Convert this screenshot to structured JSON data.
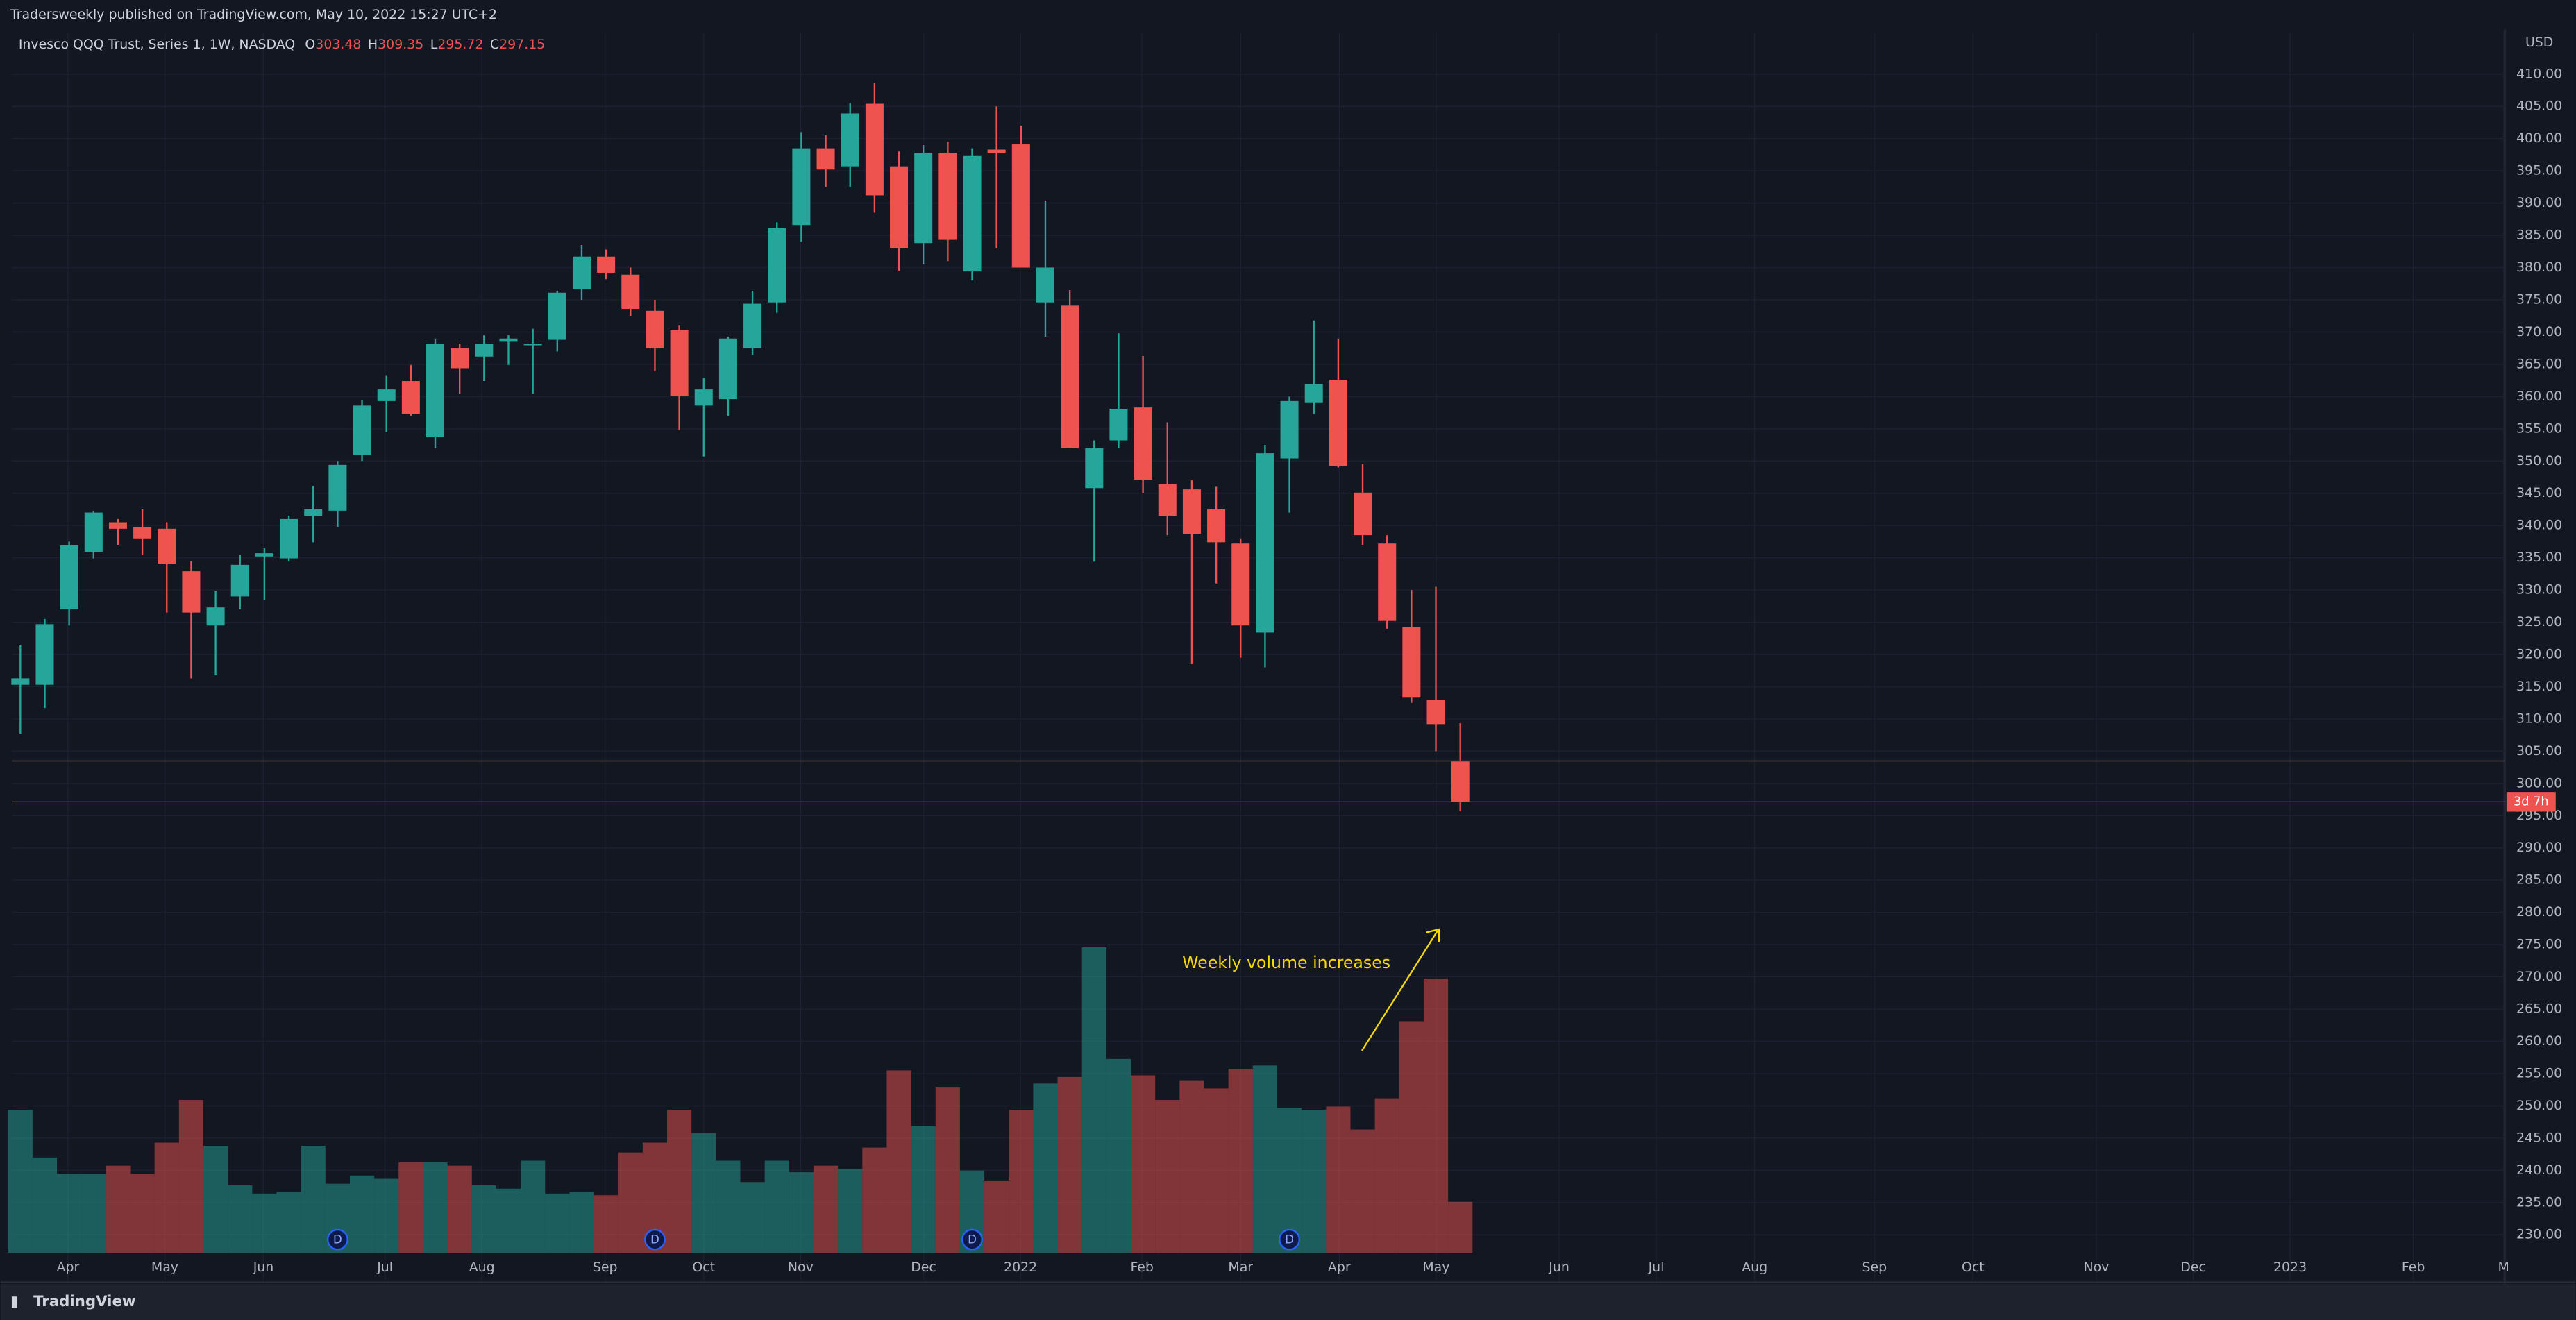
{
  "header": "Tradersweekly published on TradingView.com, May 10, 2022 15:27 UTC+2",
  "chart_data": {
    "type": "candlestick",
    "title": "Invesco QQQ Trust, Series 1, 1W, NASDAQ",
    "legend_ohlc": [
      {
        "label": "O",
        "value": 303.48
      },
      {
        "label": "H",
        "value": 309.35
      },
      {
        "label": "L",
        "value": 295.72
      },
      {
        "label": "C",
        "value": 297.15
      }
    ],
    "currency": "USD",
    "countdown": "3d 7h",
    "annotation": "Weekly volume increases",
    "up_color": "#26a69a",
    "down_color": "#ef5350",
    "open": [
      315.3,
      315.3,
      327,
      335.9,
      340.5,
      339.7,
      339.5,
      332.9,
      324.5,
      329,
      335.2,
      334.9,
      341.5,
      342.3,
      350.9,
      359.3,
      362.4,
      353.7,
      367.5,
      366.2,
      368.5,
      368,
      368.8,
      376.7,
      381.7,
      378.9,
      373.3,
      370.3,
      358.6,
      359.6,
      367.5,
      374.6,
      386.6,
      398.5,
      395.7,
      405.4,
      395.7,
      383.8,
      397.8,
      379.4,
      398.3,
      399.1,
      374.6,
      374.1,
      345.8,
      353.2,
      358.3,
      346.4,
      345.6,
      342.5,
      337.2,
      323.4,
      350.4,
      359.1,
      362.6,
      345.1,
      337.2,
      324.2,
      313,
      303.48
    ],
    "high": [
      321.4,
      325.5,
      337.5,
      342.3,
      341,
      342.5,
      340.5,
      334.5,
      329.8,
      335.4,
      336.5,
      341.5,
      346.1,
      350,
      359.5,
      363.2,
      364.9,
      369,
      368.2,
      369.5,
      369.5,
      370.5,
      376.4,
      383.5,
      382.8,
      380,
      375,
      371,
      362.9,
      369.3,
      376.4,
      387,
      401,
      400.5,
      405.5,
      408.6,
      398,
      399,
      399.5,
      398.5,
      405,
      402,
      390.4,
      376.5,
      353.2,
      369.8,
      366.3,
      356,
      347,
      346,
      338,
      352.5,
      360,
      371.8,
      369,
      349.5,
      338.5,
      330,
      330.5,
      309.35
    ],
    "low": [
      307.7,
      311.7,
      324.5,
      334.9,
      337,
      335.4,
      326.5,
      316.3,
      316.8,
      327,
      328.5,
      334.5,
      337.4,
      339.8,
      350,
      354.5,
      357,
      352,
      360.4,
      362.4,
      364.9,
      360.4,
      367,
      375,
      378.2,
      372.5,
      364,
      354.8,
      350.7,
      357,
      366.5,
      373,
      384,
      392.5,
      392.5,
      388.5,
      379.5,
      380.5,
      381,
      378,
      383,
      380,
      369.3,
      352,
      334.4,
      352,
      345,
      338.5,
      318.5,
      331,
      319.5,
      318,
      342,
      357.3,
      349,
      337,
      324,
      312.5,
      305,
      295.72
    ],
    "close": [
      316.3,
      324.7,
      336.9,
      342,
      339.5,
      338,
      334.1,
      326.5,
      327.3,
      333.9,
      335.7,
      341,
      342.5,
      349.4,
      358.6,
      361.1,
      357.3,
      368.2,
      364.4,
      368.2,
      369,
      368.2,
      376.1,
      381.7,
      379.2,
      373.6,
      367.5,
      360.1,
      361.1,
      369,
      374.4,
      386.1,
      398.5,
      395.2,
      403.9,
      391.2,
      383,
      397.8,
      384.3,
      397.3,
      397.8,
      380,
      380,
      352,
      352,
      358.1,
      347.1,
      341.5,
      338.7,
      337.4,
      324.5,
      351.2,
      359.3,
      361.9,
      349.2,
      338.5,
      325.2,
      313.3,
      309.2,
      297.15
    ],
    "volume": [
      87,
      58,
      48,
      48,
      53,
      48,
      67,
      93,
      65,
      41,
      36,
      37,
      65,
      42,
      47,
      45,
      55,
      55,
      53,
      41,
      39,
      56,
      36,
      37,
      35,
      61,
      67,
      87,
      73,
      56,
      43,
      56,
      49,
      53,
      51,
      64,
      111,
      77,
      101,
      50,
      44,
      87,
      103,
      107,
      186,
      118,
      108,
      93,
      105,
      100,
      112,
      114,
      88,
      87,
      89,
      75,
      94,
      141,
      167,
      31
    ],
    "dividends": [
      {
        "index": 13,
        "label": "D"
      },
      {
        "index": 26,
        "label": "D"
      },
      {
        "index": 39,
        "label": "D"
      },
      {
        "index": 52,
        "label": "D"
      }
    ],
    "xlim": [
      -0.34,
      101.8
    ],
    "xticks": [
      {
        "value": 1.95,
        "label": "Apr"
      },
      {
        "value": 5.92,
        "label": "May"
      },
      {
        "value": 9.96,
        "label": "Jun"
      },
      {
        "value": 14.94,
        "label": "Jul"
      },
      {
        "value": 18.91,
        "label": "Aug"
      },
      {
        "value": 23.96,
        "label": "Sep"
      },
      {
        "value": 28.0,
        "label": "Oct"
      },
      {
        "value": 31.97,
        "label": "Nov"
      },
      {
        "value": 37.01,
        "label": "Dec"
      },
      {
        "value": 40.98,
        "label": "2022"
      },
      {
        "value": 45.96,
        "label": "Feb"
      },
      {
        "value": 50.0,
        "label": "Mar"
      },
      {
        "value": 54.04,
        "label": "Apr"
      },
      {
        "value": 58.01,
        "label": "May"
      },
      {
        "value": 63.05,
        "label": "Jun"
      },
      {
        "value": 67.03,
        "label": "Jul"
      },
      {
        "value": 71.06,
        "label": "Aug"
      },
      {
        "value": 75.97,
        "label": "Sep"
      },
      {
        "value": 80.01,
        "label": "Oct"
      },
      {
        "value": 85.06,
        "label": "Nov"
      },
      {
        "value": 89.03,
        "label": "Dec"
      },
      {
        "value": 93.0,
        "label": "2023"
      },
      {
        "value": 98.05,
        "label": "Feb"
      },
      {
        "value": 101.75,
        "label": "M"
      }
    ],
    "ylim": [
      222.9,
      416.4
    ],
    "yticks": [
      {
        "value": 230,
        "label": "230.00"
      },
      {
        "value": 235,
        "label": "235.00"
      },
      {
        "value": 240,
        "label": "240.00"
      },
      {
        "value": 245,
        "label": "245.00"
      },
      {
        "value": 250,
        "label": "250.00"
      },
      {
        "value": 255,
        "label": "255.00"
      },
      {
        "value": 260,
        "label": "260.00"
      },
      {
        "value": 265,
        "label": "265.00"
      },
      {
        "value": 270,
        "label": "270.00"
      },
      {
        "value": 275,
        "label": "275.00"
      },
      {
        "value": 280,
        "label": "280.00"
      },
      {
        "value": 285,
        "label": "285.00"
      },
      {
        "value": 290,
        "label": "290.00"
      },
      {
        "value": 295,
        "label": "295.00"
      },
      {
        "value": 300,
        "label": "300.00"
      },
      {
        "value": 305,
        "label": "305.00"
      },
      {
        "value": 310,
        "label": "310.00"
      },
      {
        "value": 315,
        "label": "315.00"
      },
      {
        "value": 320,
        "label": "320.00"
      },
      {
        "value": 325,
        "label": "325.00"
      },
      {
        "value": 330,
        "label": "330.00"
      },
      {
        "value": 335,
        "label": "335.00"
      },
      {
        "value": 340,
        "label": "340.00"
      },
      {
        "value": 345,
        "label": "345.00"
      },
      {
        "value": 350,
        "label": "350.00"
      },
      {
        "value": 355,
        "label": "355.00"
      },
      {
        "value": 360,
        "label": "360.00"
      },
      {
        "value": 365,
        "label": "365.00"
      },
      {
        "value": 370,
        "label": "370.00"
      },
      {
        "value": 375,
        "label": "375.00"
      },
      {
        "value": 380,
        "label": "380.00"
      },
      {
        "value": 385,
        "label": "385.00"
      },
      {
        "value": 390,
        "label": "390.00"
      },
      {
        "value": 395,
        "label": "395.00"
      },
      {
        "value": 400,
        "label": "400.00"
      },
      {
        "value": 405,
        "label": "405.00"
      },
      {
        "value": 410,
        "label": "410.00"
      }
    ],
    "grid": true
  },
  "footer": "TradingView"
}
